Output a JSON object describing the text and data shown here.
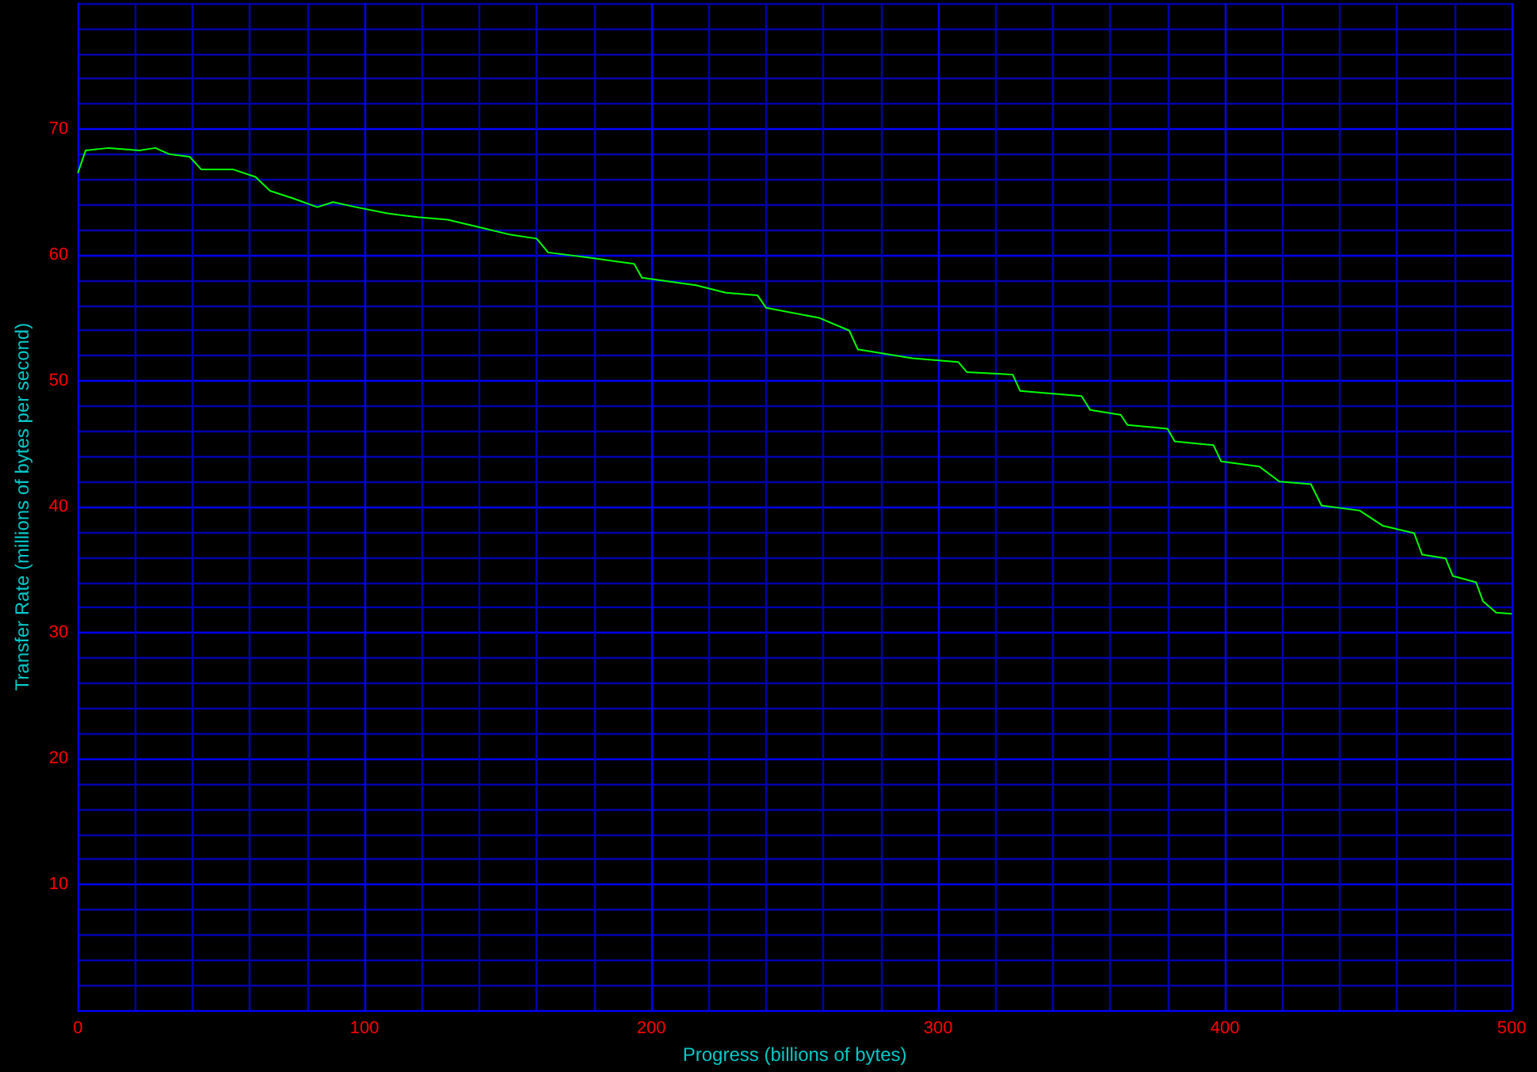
{
  "chart_data": {
    "type": "line",
    "xlabel": "Progress (billions of bytes)",
    "ylabel": "Transfer Rate (millions of bytes per second)",
    "xlim": [
      0,
      500
    ],
    "ylim": [
      0,
      80
    ],
    "xticks": [
      0,
      {
        "value": 20,
        "label": null
      },
      {
        "value": 40,
        "label": null
      },
      {
        "value": 60,
        "label": null
      },
      {
        "value": 80,
        "label": null
      },
      100,
      {
        "value": 120,
        "label": null
      },
      {
        "value": 140,
        "label": null
      },
      {
        "value": 160,
        "label": null
      },
      {
        "value": 180,
        "label": null
      },
      200,
      {
        "value": 220,
        "label": null
      },
      {
        "value": 240,
        "label": null
      },
      {
        "value": 260,
        "label": null
      },
      {
        "value": 280,
        "label": null
      },
      300,
      {
        "value": 320,
        "label": null
      },
      {
        "value": 340,
        "label": null
      },
      {
        "value": 360,
        "label": null
      },
      {
        "value": 380,
        "label": null
      },
      400,
      {
        "value": 420,
        "label": null
      },
      {
        "value": 440,
        "label": null
      },
      {
        "value": 460,
        "label": null
      },
      {
        "value": 480,
        "label": null
      },
      500
    ],
    "yticks": [
      {
        "value": 0,
        "label": null
      },
      {
        "value": 2,
        "label": null
      },
      {
        "value": 4,
        "label": null
      },
      {
        "value": 6,
        "label": null
      },
      {
        "value": 8,
        "label": null
      },
      10,
      {
        "value": 12,
        "label": null
      },
      {
        "value": 14,
        "label": null
      },
      {
        "value": 16,
        "label": null
      },
      {
        "value": 18,
        "label": null
      },
      20,
      {
        "value": 22,
        "label": null
      },
      {
        "value": 24,
        "label": null
      },
      {
        "value": 26,
        "label": null
      },
      {
        "value": 28,
        "label": null
      },
      30,
      {
        "value": 32,
        "label": null
      },
      {
        "value": 34,
        "label": null
      },
      {
        "value": 36,
        "label": null
      },
      {
        "value": 38,
        "label": null
      },
      40,
      {
        "value": 42,
        "label": null
      },
      {
        "value": 44,
        "label": null
      },
      {
        "value": 46,
        "label": null
      },
      {
        "value": 48,
        "label": null
      },
      50,
      {
        "value": 52,
        "label": null
      },
      {
        "value": 54,
        "label": null
      },
      {
        "value": 56,
        "label": null
      },
      {
        "value": 58,
        "label": null
      },
      60,
      {
        "value": 62,
        "label": null
      },
      {
        "value": 64,
        "label": null
      },
      {
        "value": 66,
        "label": null
      },
      {
        "value": 68,
        "label": null
      },
      70,
      {
        "value": 72,
        "label": null
      },
      {
        "value": 74,
        "label": null
      },
      {
        "value": 76,
        "label": null
      },
      {
        "value": 78,
        "label": null
      },
      {
        "value": 80,
        "label": null
      }
    ],
    "grid": true,
    "marker": "none",
    "line_style": "solid",
    "series": [
      {
        "color": "#00ff00",
        "x": [
          0,
          2.7,
          10.8,
          21.5,
          27,
          32,
          39,
          43,
          54,
          62,
          67,
          75,
          83.5,
          89,
          97,
          108,
          118.5,
          129,
          140,
          151,
          160,
          164,
          178,
          194,
          196.7,
          215.5,
          226,
          237,
          240,
          258.6,
          269,
          272,
          291,
          307,
          310,
          326,
          328.6,
          350,
          353,
          363.7,
          366,
          380,
          382.5,
          396,
          398.7,
          412,
          419,
          430,
          433.7,
          447,
          455,
          466,
          468.8,
          477,
          479.5,
          487.6,
          490,
          494.6,
          500
        ],
        "values": [
          66.5,
          68.3,
          68.5,
          68.3,
          68.5,
          68.0,
          67.8,
          66.8,
          66.8,
          66.2,
          65.1,
          64.5,
          63.8,
          64.2,
          63.8,
          63.3,
          63.0,
          62.8,
          62.2,
          61.6,
          61.3,
          60.2,
          59.8,
          59.3,
          58.2,
          57.6,
          57.0,
          56.8,
          55.8,
          55.0,
          54.0,
          52.5,
          51.8,
          51.5,
          50.7,
          50.5,
          49.2,
          48.8,
          47.7,
          47.3,
          46.5,
          46.2,
          45.2,
          44.9,
          43.6,
          43.2,
          42.0,
          41.8,
          40.1,
          39.7,
          38.5,
          37.9,
          36.2,
          35.9,
          34.5,
          34.0,
          32.5,
          31.6,
          31.5
        ]
      }
    ]
  }
}
